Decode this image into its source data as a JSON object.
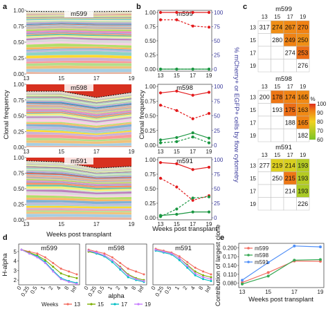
{
  "panel_labels": [
    "a",
    "b",
    "c",
    "d",
    "e"
  ],
  "chart_data": [
    {
      "panel": "a",
      "type": "area",
      "subplots": [
        "m599",
        "m598",
        "m591"
      ],
      "x": [
        13,
        15,
        17,
        19
      ],
      "x_ticks": [
        "13",
        "15",
        "17",
        "19"
      ],
      "y_ticks": [
        "0.00",
        "0.25",
        "0.50",
        "0.75",
        "1.00"
      ],
      "ylim": [
        0,
        1
      ],
      "ylabel": "Clonal frequency",
      "xlabel": "Weeks post transplant",
      "largest_clone_bottom": {
        "m599": [
          0.985,
          0.98,
          0.98,
          0.985
        ],
        "m598": [
          0.89,
          0.89,
          0.79,
          0.87
        ],
        "m591": [
          0.95,
          0.93,
          0.83,
          0.86
        ]
      }
    },
    {
      "panel": "b",
      "type": "line",
      "subplots": [
        "m599",
        "m598",
        "m591"
      ],
      "x": [
        13,
        15,
        17,
        19
      ],
      "x_ticks": [
        "13",
        "15",
        "17",
        "19"
      ],
      "y_ticks": [
        "0.00",
        "0.25",
        "0.50",
        "0.75",
        "1.00"
      ],
      "y2_ticks": [
        "0",
        "25",
        "50",
        "75",
        "100"
      ],
      "ylim": [
        0,
        1
      ],
      "y2lim": [
        0,
        100
      ],
      "ylabel": "Clonal frequency",
      "y2label": "% mCherry+ or EGFP+ cells by flow cytometry",
      "xlabel": "Weeks post transplant",
      "series": {
        "m599": {
          "red_solid": [
            1.0,
            1.0,
            1.0,
            1.0
          ],
          "red_dashed": [
            0.87,
            0.87,
            0.76,
            0.74
          ],
          "green_solid": [
            0.0,
            0.0,
            0.0,
            0.0
          ],
          "green_dashed": [
            0.0,
            0.0,
            0.0,
            0.0
          ]
        },
        "m598": {
          "red_solid": [
            0.89,
            0.92,
            0.85,
            0.9
          ],
          "red_dashed": [
            0.68,
            0.59,
            0.45,
            0.54
          ],
          "green_solid": [
            0.09,
            0.13,
            0.21,
            0.12
          ],
          "green_dashed": [
            0.04,
            0.06,
            0.14,
            0.04
          ]
        },
        "m591": {
          "red_solid": [
            0.95,
            0.93,
            0.83,
            0.87
          ],
          "red_dashed": [
            0.68,
            0.53,
            0.3,
            0.38
          ],
          "green_solid": [
            0.04,
            0.06,
            0.1,
            0.1
          ],
          "green_dashed": [
            0.02,
            0.15,
            0.34,
            0.36
          ]
        }
      }
    },
    {
      "panel": "c",
      "type": "heatmap",
      "weeks": [
        "13",
        "15",
        "17",
        "19"
      ],
      "legend_title": "%",
      "legend_ticks": [
        "100",
        "90",
        "80",
        "70",
        "60"
      ],
      "legend_range": [
        60,
        100
      ],
      "matrices": [
        {
          "name": "m599",
          "cells": [
            [
              "317",
              "274",
              "267",
              "270"
            ],
            [
              "",
              "280",
              "249",
              "250"
            ],
            [
              "",
              "",
              "274",
              "253"
            ],
            [
              "",
              "",
              "",
              "276"
            ]
          ],
          "pct": [
            [
              null,
              90,
              91,
              92
            ],
            [
              null,
              null,
              92,
              90
            ],
            [
              null,
              null,
              null,
              94
            ],
            [
              null,
              null,
              null,
              null
            ]
          ]
        },
        {
          "name": "m598",
          "cells": [
            [
              "200",
              "178",
              "174",
              "165"
            ],
            [
              "",
              "193",
              "175",
              "163"
            ],
            [
              "",
              "",
              "188",
              "165"
            ],
            [
              "",
              "",
              "",
              "182"
            ]
          ],
          "pct": [
            [
              null,
              93,
              92,
              91
            ],
            [
              null,
              null,
              94,
              91
            ],
            [
              null,
              null,
              null,
              92
            ],
            [
              null,
              null,
              null,
              null
            ]
          ]
        },
        {
          "name": "m591",
          "cells": [
            [
              "277",
              "219",
              "214",
              "193"
            ],
            [
              "",
              "250",
              "215",
              "193"
            ],
            [
              "",
              "",
              "214",
              "193"
            ],
            [
              "",
              "",
              "",
              "226"
            ]
          ],
          "pct": [
            [
              null,
              77,
              76,
              70
            ],
            [
              null,
              null,
              93,
              70
            ],
            [
              null,
              null,
              null,
              68
            ],
            [
              null,
              null,
              null,
              null
            ]
          ]
        }
      ]
    },
    {
      "panel": "d",
      "type": "line",
      "subplots": [
        "m599",
        "m598",
        "m591"
      ],
      "x_ticks": [
        "0",
        "0.25",
        "0.5",
        "1",
        "2",
        "4",
        "8",
        "Inf"
      ],
      "y_ticks": [
        "2",
        "3",
        "4",
        "5"
      ],
      "ylim": [
        1.5,
        5.8
      ],
      "ylabel": "H-alpha",
      "xlabel": "alpha",
      "legend_title": "Weeks",
      "series": [
        {
          "name": "13",
          "color": "#f36c60",
          "m599": [
            5.2,
            5.0,
            4.8,
            4.4,
            3.8,
            3.2,
            2.9,
            2.6
          ],
          "m598": [
            5.2,
            5.0,
            4.8,
            4.4,
            3.8,
            3.2,
            2.9,
            2.6
          ],
          "m591": [
            5.3,
            5.1,
            4.9,
            4.5,
            3.9,
            3.3,
            2.9,
            2.6
          ]
        },
        {
          "name": "15",
          "color": "#7cae00",
          "m599": [
            5.2,
            4.9,
            4.6,
            4.1,
            3.4,
            2.7,
            2.4,
            2.2
          ],
          "m598": [
            5.0,
            4.8,
            4.6,
            4.1,
            3.4,
            2.6,
            2.2,
            2.0
          ],
          "m591": [
            5.2,
            5.0,
            4.8,
            4.3,
            3.6,
            2.9,
            2.5,
            2.3
          ]
        },
        {
          "name": "17",
          "color": "#00bfc4",
          "m599": [
            5.2,
            4.8,
            4.5,
            3.9,
            3.0,
            2.2,
            1.9,
            1.7
          ],
          "m598": [
            5.1,
            4.8,
            4.5,
            3.9,
            3.1,
            2.3,
            2.0,
            1.8
          ],
          "m591": [
            5.1,
            4.9,
            4.7,
            4.1,
            3.3,
            2.5,
            2.1,
            1.9
          ]
        },
        {
          "name": "19",
          "color": "#c77cff",
          "m599": [
            5.2,
            4.8,
            4.4,
            3.8,
            2.9,
            2.1,
            1.8,
            1.6
          ],
          "m598": [
            5.1,
            4.9,
            4.6,
            4.1,
            3.3,
            2.5,
            2.1,
            1.9
          ],
          "m591": [
            5.2,
            5.0,
            4.8,
            4.3,
            3.5,
            2.7,
            2.3,
            2.1
          ]
        }
      ]
    },
    {
      "panel": "e",
      "type": "line",
      "x": [
        13,
        15,
        17,
        19
      ],
      "x_ticks": [
        "13",
        "15",
        "17",
        "19"
      ],
      "y_ticks": [
        "0.080",
        "0.110",
        "0.140",
        "0.170",
        "0.200"
      ],
      "ylim": [
        0.065,
        0.215
      ],
      "ylabel": "Contribution of largest clone",
      "xlabel": "Weeks post transplant",
      "series": [
        {
          "name": "m599",
          "color": "#f36c60",
          "values": [
            0.082,
            0.116,
            0.155,
            0.154
          ]
        },
        {
          "name": "m598",
          "color": "#35a853",
          "values": [
            0.077,
            0.104,
            0.158,
            0.16
          ]
        },
        {
          "name": "m591",
          "color": "#4e8ef7",
          "values": [
            0.09,
            0.15,
            0.206,
            0.203
          ]
        }
      ]
    }
  ]
}
